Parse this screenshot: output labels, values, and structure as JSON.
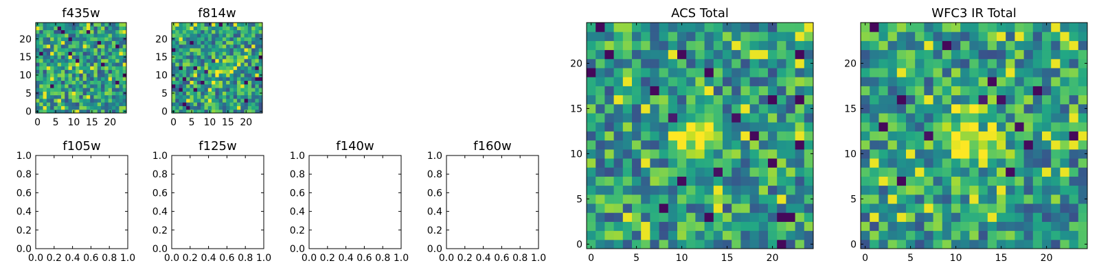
{
  "chart_data": [
    {
      "type": "heatmap",
      "title": "f435w",
      "xlim": [
        -0.5,
        24.5
      ],
      "ylim": [
        -0.5,
        24.5
      ],
      "xticks": [
        0,
        5,
        10,
        15,
        20
      ],
      "yticks": [
        0,
        5,
        10,
        15,
        20
      ],
      "colormap": "viridis",
      "grid": false,
      "cells": {
        "rows": 25,
        "cols": 25,
        "pattern": "noise",
        "seed": 435,
        "center_peak": 0.0
      },
      "empty": false
    },
    {
      "type": "heatmap",
      "title": "f814w",
      "xlim": [
        -0.5,
        24.5
      ],
      "ylim": [
        -0.5,
        24.5
      ],
      "xticks": [
        0,
        5,
        10,
        15,
        20
      ],
      "yticks": [
        0,
        5,
        10,
        15,
        20
      ],
      "colormap": "viridis",
      "grid": false,
      "cells": {
        "rows": 25,
        "cols": 25,
        "pattern": "noise",
        "seed": 814,
        "center_peak": 0.25
      },
      "empty": false
    },
    {
      "type": "line",
      "title": "f105w",
      "xlim": [
        0,
        1
      ],
      "ylim": [
        0,
        1
      ],
      "xticks": [
        0.0,
        0.2,
        0.4,
        0.6,
        0.8,
        1.0
      ],
      "yticks": [
        0.0,
        0.2,
        0.4,
        0.6,
        0.8,
        1.0
      ],
      "series": [],
      "empty": true
    },
    {
      "type": "line",
      "title": "f125w",
      "xlim": [
        0,
        1
      ],
      "ylim": [
        0,
        1
      ],
      "xticks": [
        0.0,
        0.2,
        0.4,
        0.6,
        0.8,
        1.0
      ],
      "yticks": [
        0.0,
        0.2,
        0.4,
        0.6,
        0.8,
        1.0
      ],
      "series": [],
      "empty": true
    },
    {
      "type": "line",
      "title": "f140w",
      "xlim": [
        0,
        1
      ],
      "ylim": [
        0,
        1
      ],
      "xticks": [
        0.0,
        0.2,
        0.4,
        0.6,
        0.8,
        1.0
      ],
      "yticks": [
        0.0,
        0.2,
        0.4,
        0.6,
        0.8,
        1.0
      ],
      "series": [],
      "empty": true
    },
    {
      "type": "line",
      "title": "f160w",
      "xlim": [
        0,
        1
      ],
      "ylim": [
        0,
        1
      ],
      "xticks": [
        0.0,
        0.2,
        0.4,
        0.6,
        0.8,
        1.0
      ],
      "yticks": [
        0.0,
        0.2,
        0.4,
        0.6,
        0.8,
        1.0
      ],
      "series": [],
      "empty": true
    },
    {
      "type": "heatmap",
      "title": "ACS Total",
      "xlim": [
        -0.5,
        24.5
      ],
      "ylim": [
        -0.5,
        24.5
      ],
      "xticks": [
        0,
        5,
        10,
        15,
        20
      ],
      "yticks": [
        0,
        5,
        10,
        15,
        20
      ],
      "colormap": "viridis",
      "grid": false,
      "cells": {
        "rows": 25,
        "cols": 25,
        "pattern": "noise",
        "seed": 1234,
        "center_peak": 0.3
      },
      "empty": false
    },
    {
      "type": "heatmap",
      "title": "WFC3 IR Total",
      "xlim": [
        -0.5,
        24.5
      ],
      "ylim": [
        -0.5,
        24.5
      ],
      "xticks": [
        0,
        5,
        10,
        15,
        20
      ],
      "yticks": [
        0,
        5,
        10,
        15,
        20
      ],
      "colormap": "viridis",
      "grid": false,
      "cells": {
        "rows": 25,
        "cols": 25,
        "pattern": "noise",
        "seed": 2025,
        "center_peak": 0.55
      },
      "empty": false
    }
  ]
}
